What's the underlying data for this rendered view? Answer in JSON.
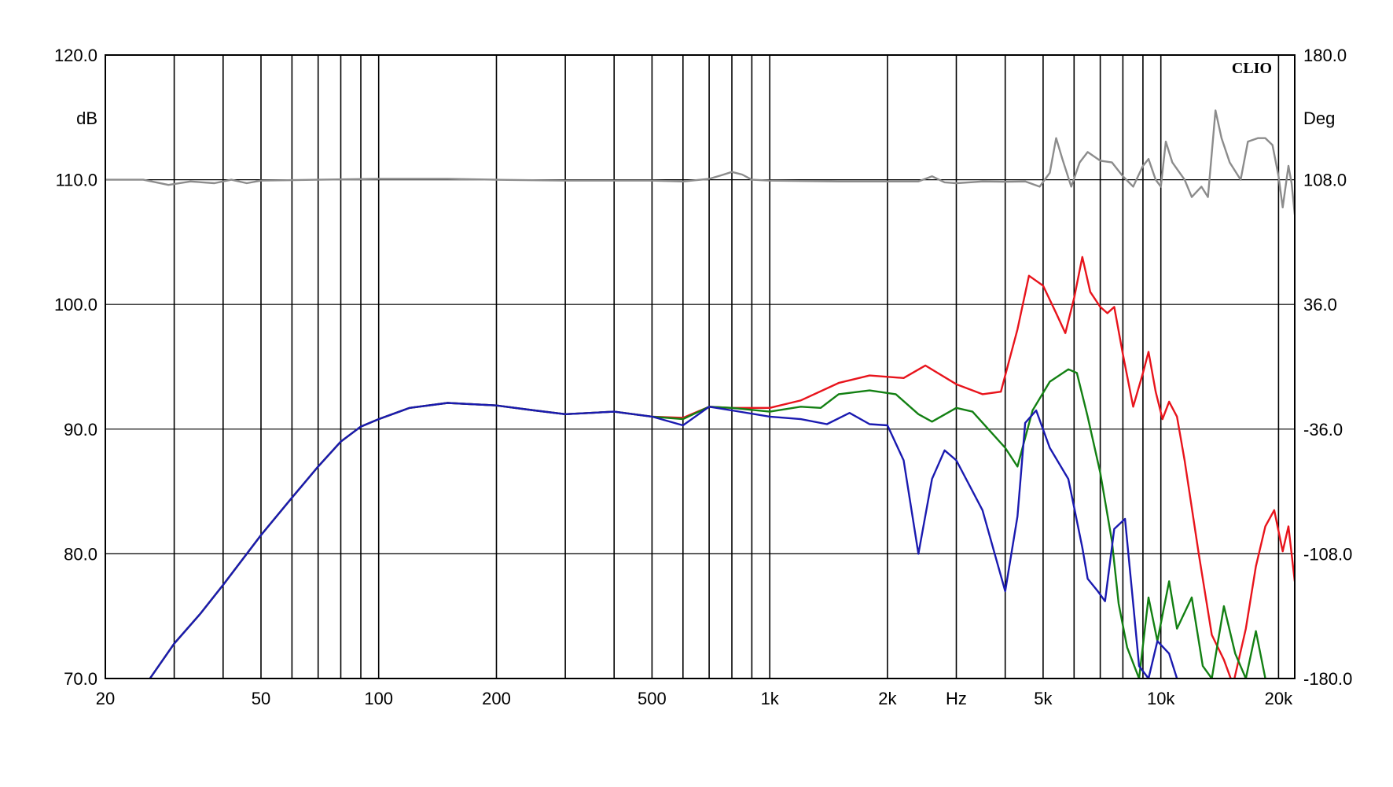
{
  "chart_data": {
    "type": "line",
    "brand": "CLIO",
    "x_axis": {
      "scale": "log",
      "range": [
        20,
        22000
      ],
      "unit_label": "Hz",
      "unit_label_position_hz": 3000,
      "ticks": [
        {
          "value": 20,
          "label": "20"
        },
        {
          "value": 50,
          "label": "50"
        },
        {
          "value": 100,
          "label": "100"
        },
        {
          "value": 200,
          "label": "200"
        },
        {
          "value": 500,
          "label": "500"
        },
        {
          "value": 1000,
          "label": "1k"
        },
        {
          "value": 2000,
          "label": "2k"
        },
        {
          "value": 5000,
          "label": "5k"
        },
        {
          "value": 10000,
          "label": "10k"
        },
        {
          "value": 20000,
          "label": "20k"
        }
      ],
      "gridlines": [
        30,
        40,
        50,
        60,
        70,
        80,
        90,
        100,
        200,
        300,
        400,
        500,
        600,
        700,
        800,
        900,
        1000,
        2000,
        3000,
        4000,
        5000,
        6000,
        7000,
        8000,
        9000,
        10000,
        20000
      ]
    },
    "y_left": {
      "unit_label": "dB",
      "range": [
        70,
        120
      ],
      "ticks": [
        {
          "value": 70,
          "label": "70.0"
        },
        {
          "value": 80,
          "label": "80.0"
        },
        {
          "value": 90,
          "label": "90.0"
        },
        {
          "value": 100,
          "label": "100.0"
        },
        {
          "value": 110,
          "label": "110.0"
        },
        {
          "value": 120,
          "label": "120.0"
        }
      ]
    },
    "y_right": {
      "unit_label": "Deg",
      "range": [
        -180,
        180
      ],
      "ticks": [
        {
          "value": -180,
          "label": "-180.0"
        },
        {
          "value": -108,
          "label": "-108.0"
        },
        {
          "value": -36,
          "label": "-36.0"
        },
        {
          "value": 36,
          "label": "36.0"
        },
        {
          "value": 108,
          "label": "108.0"
        },
        {
          "value": 180,
          "label": "180.0"
        }
      ]
    },
    "grid": true,
    "series": [
      {
        "color": "#e8141c",
        "points": [
          [
            26,
            70
          ],
          [
            30,
            72.8
          ],
          [
            35,
            75.2
          ],
          [
            40,
            77.5
          ],
          [
            50,
            81.5
          ],
          [
            60,
            84.5
          ],
          [
            70,
            87
          ],
          [
            80,
            89
          ],
          [
            90,
            90.2
          ],
          [
            100,
            90.8
          ],
          [
            120,
            91.7
          ],
          [
            150,
            92.1
          ],
          [
            200,
            91.9
          ],
          [
            250,
            91.5
          ],
          [
            300,
            91.2
          ],
          [
            400,
            91.4
          ],
          [
            500,
            91
          ],
          [
            600,
            90.9
          ],
          [
            700,
            91.8
          ],
          [
            800,
            91.7
          ],
          [
            1000,
            91.7
          ],
          [
            1200,
            92.3
          ],
          [
            1500,
            93.7
          ],
          [
            1800,
            94.3
          ],
          [
            2200,
            94.1
          ],
          [
            2500,
            95.1
          ],
          [
            3000,
            93.6
          ],
          [
            3500,
            92.8
          ],
          [
            3900,
            93
          ],
          [
            4300,
            98
          ],
          [
            4600,
            102.3
          ],
          [
            5000,
            101.5
          ],
          [
            5400,
            99.3
          ],
          [
            5700,
            97.7
          ],
          [
            6000,
            100.5
          ],
          [
            6300,
            103.8
          ],
          [
            6600,
            101
          ],
          [
            7000,
            99.8
          ],
          [
            7300,
            99.3
          ],
          [
            7600,
            99.8
          ],
          [
            8000,
            96
          ],
          [
            8500,
            91.8
          ],
          [
            9000,
            94.5
          ],
          [
            9300,
            96.2
          ],
          [
            9700,
            93
          ],
          [
            10100,
            90.8
          ],
          [
            10500,
            92.2
          ],
          [
            11000,
            91
          ],
          [
            11500,
            87.5
          ],
          [
            12500,
            80
          ],
          [
            13500,
            73.5
          ],
          [
            14500,
            71.5
          ],
          [
            15300,
            69.5
          ],
          [
            16500,
            74
          ],
          [
            17500,
            79
          ],
          [
            18500,
            82.2
          ],
          [
            19500,
            83.5
          ],
          [
            20500,
            80.2
          ],
          [
            21200,
            82.2
          ],
          [
            22000,
            77.8
          ]
        ]
      },
      {
        "color": "#138013",
        "points": [
          [
            26,
            70
          ],
          [
            30,
            72.8
          ],
          [
            35,
            75.2
          ],
          [
            40,
            77.5
          ],
          [
            50,
            81.5
          ],
          [
            60,
            84.5
          ],
          [
            70,
            87
          ],
          [
            80,
            89
          ],
          [
            90,
            90.2
          ],
          [
            100,
            90.8
          ],
          [
            120,
            91.7
          ],
          [
            150,
            92.1
          ],
          [
            200,
            91.9
          ],
          [
            250,
            91.5
          ],
          [
            300,
            91.2
          ],
          [
            400,
            91.4
          ],
          [
            500,
            91
          ],
          [
            600,
            90.8
          ],
          [
            700,
            91.8
          ],
          [
            800,
            91.7
          ],
          [
            1000,
            91.4
          ],
          [
            1200,
            91.8
          ],
          [
            1350,
            91.7
          ],
          [
            1500,
            92.8
          ],
          [
            1800,
            93.1
          ],
          [
            2100,
            92.8
          ],
          [
            2400,
            91.2
          ],
          [
            2600,
            90.6
          ],
          [
            3000,
            91.7
          ],
          [
            3300,
            91.4
          ],
          [
            4000,
            88.5
          ],
          [
            4300,
            87
          ],
          [
            4700,
            91.5
          ],
          [
            5200,
            93.8
          ],
          [
            5800,
            94.8
          ],
          [
            6100,
            94.5
          ],
          [
            6500,
            91
          ],
          [
            7000,
            86.5
          ],
          [
            7500,
            81
          ],
          [
            7800,
            76
          ],
          [
            8200,
            72.5
          ],
          [
            8800,
            70
          ],
          [
            9300,
            76.5
          ],
          [
            9800,
            73
          ],
          [
            10500,
            77.8
          ],
          [
            11000,
            74
          ],
          [
            12000,
            76.5
          ],
          [
            12800,
            71
          ],
          [
            13500,
            70
          ],
          [
            14500,
            75.8
          ],
          [
            15500,
            72
          ],
          [
            16500,
            70
          ],
          [
            17500,
            73.8
          ],
          [
            18500,
            70
          ]
        ]
      },
      {
        "color": "#1a1ab0",
        "points": [
          [
            26,
            70
          ],
          [
            30,
            72.8
          ],
          [
            35,
            75.2
          ],
          [
            40,
            77.5
          ],
          [
            50,
            81.5
          ],
          [
            60,
            84.5
          ],
          [
            70,
            87
          ],
          [
            80,
            89
          ],
          [
            90,
            90.2
          ],
          [
            100,
            90.8
          ],
          [
            120,
            91.7
          ],
          [
            150,
            92.1
          ],
          [
            200,
            91.9
          ],
          [
            250,
            91.5
          ],
          [
            300,
            91.2
          ],
          [
            400,
            91.4
          ],
          [
            500,
            91
          ],
          [
            600,
            90.3
          ],
          [
            700,
            91.8
          ],
          [
            800,
            91.5
          ],
          [
            1000,
            91
          ],
          [
            1200,
            90.8
          ],
          [
            1400,
            90.4
          ],
          [
            1600,
            91.3
          ],
          [
            1800,
            90.4
          ],
          [
            2000,
            90.3
          ],
          [
            2200,
            87.5
          ],
          [
            2400,
            80
          ],
          [
            2600,
            86
          ],
          [
            2800,
            88.3
          ],
          [
            3000,
            87.5
          ],
          [
            3500,
            83.5
          ],
          [
            4000,
            77
          ],
          [
            4300,
            83
          ],
          [
            4500,
            90.5
          ],
          [
            4800,
            91.5
          ],
          [
            5200,
            88.5
          ],
          [
            5800,
            86
          ],
          [
            6300,
            80.5
          ],
          [
            6500,
            78
          ],
          [
            6900,
            77
          ],
          [
            7200,
            76.2
          ],
          [
            7600,
            82
          ],
          [
            8100,
            82.8
          ],
          [
            8500,
            76
          ],
          [
            8800,
            71
          ],
          [
            9300,
            70
          ],
          [
            9800,
            73
          ],
          [
            10500,
            72
          ],
          [
            11000,
            70
          ]
        ]
      },
      {
        "color": "#8c8c8c",
        "axis": "right",
        "points": [
          [
            20,
            108
          ],
          [
            25,
            108
          ],
          [
            29,
            105
          ],
          [
            33,
            107
          ],
          [
            38,
            106
          ],
          [
            42,
            108
          ],
          [
            46,
            106
          ],
          [
            50,
            107.5
          ],
          [
            70,
            108
          ],
          [
            100,
            108.5
          ],
          [
            150,
            108.5
          ],
          [
            200,
            108
          ],
          [
            300,
            107.5
          ],
          [
            500,
            107.5
          ],
          [
            600,
            107
          ],
          [
            700,
            108.5
          ],
          [
            750,
            110.5
          ],
          [
            800,
            112.5
          ],
          [
            850,
            111
          ],
          [
            900,
            108
          ],
          [
            1000,
            107.5
          ],
          [
            1500,
            107
          ],
          [
            2000,
            107
          ],
          [
            2400,
            107
          ],
          [
            2600,
            110
          ],
          [
            2800,
            106.5
          ],
          [
            3000,
            106
          ],
          [
            3500,
            107
          ],
          [
            4000,
            106.8
          ],
          [
            4500,
            107
          ],
          [
            4900,
            104
          ],
          [
            5200,
            112
          ],
          [
            5400,
            132
          ],
          [
            5600,
            120
          ],
          [
            5900,
            104
          ],
          [
            6200,
            118
          ],
          [
            6500,
            124
          ],
          [
            7000,
            119
          ],
          [
            7500,
            118
          ],
          [
            8000,
            110
          ],
          [
            8500,
            104
          ],
          [
            9000,
            116
          ],
          [
            9300,
            120
          ],
          [
            9700,
            108
          ],
          [
            10000,
            104
          ],
          [
            10300,
            130
          ],
          [
            10700,
            118
          ],
          [
            11500,
            108
          ],
          [
            12000,
            98
          ],
          [
            12700,
            104
          ],
          [
            13200,
            98
          ],
          [
            13800,
            148
          ],
          [
            14300,
            132
          ],
          [
            15000,
            118
          ],
          [
            16000,
            108
          ],
          [
            16700,
            130
          ],
          [
            17700,
            132
          ],
          [
            18500,
            132
          ],
          [
            19300,
            128
          ],
          [
            20000,
            110
          ],
          [
            20500,
            92
          ],
          [
            21200,
            116
          ],
          [
            21600,
            106
          ],
          [
            22000,
            88
          ]
        ]
      }
    ]
  }
}
